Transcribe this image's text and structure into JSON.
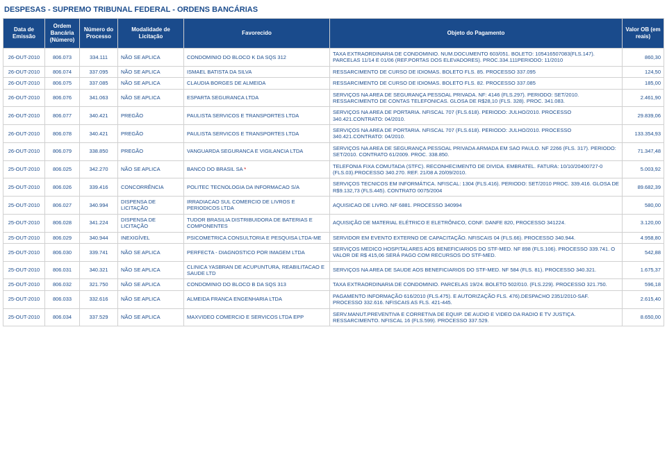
{
  "title": "DESPESAS - SUPREMO TRIBUNAL FEDERAL - ORDENS BANCÁRIAS",
  "headers": {
    "data": "Data de Emissão",
    "ordem": "Ordem Bancária (Número)",
    "processo": "Número do Processo",
    "modalidade": "Modalidade de Licitação",
    "favorecido": "Favorecido",
    "objeto": "Objeto do Pagamento",
    "valor": "Valor OB (em reais)"
  },
  "rows": [
    {
      "data": "26-OUT-2010",
      "ordem": "806.073",
      "proc": "334.111",
      "mod": "NÃO SE APLICA",
      "fav": "CONDOMINIO DO BLOCO K DA SQS 312",
      "obj": "TAXA EXTRAORDINARIA DE CONDOMINIO. NUM.DOCUMENTO 603/051. BOLETO: 105416507083(FLS.147). PARCELAS 11/14 E 01/06 (REF.PORTAS DOS ELEVADORES). PROC.334.111PERIODO: 11/2010",
      "val": "860,30"
    },
    {
      "data": "26-OUT-2010",
      "ordem": "806.074",
      "proc": "337.095",
      "mod": "NÃO SE APLICA",
      "fav": "ISMAEL BATISTA DA SILVA",
      "obj": "RESSARCIMENTO DE CURSO DE IDIOMAS. BOLETO FLS. 85. PROCESSO 337.095",
      "val": "124,50"
    },
    {
      "data": "26-OUT-2010",
      "ordem": "806.075",
      "proc": "337.085",
      "mod": "NÃO SE APLICA",
      "fav": "CLAUDIA BORGES DE ALMEIDA",
      "obj": "RESSARCIMENTO DE CURSO DE IDIOMAS. BOLETO FLS. 82. PROCESSO 337.085",
      "val": "185,00"
    },
    {
      "data": "26-OUT-2010",
      "ordem": "806.076",
      "proc": "341.063",
      "mod": "NÃO SE APLICA",
      "fav": "ESPARTA SEGURANCA LTDA",
      "obj": "SERVIÇOS NA AREA DE SEGURANÇA PESSOAL PRIVADA. NF: 4146 (FLS.297). PERIODO:   SET/2010. RESSARCIMENTO DE CONTAS TELEFONICAS. GLOSA DE R$28,10 (FLS. 328).   PROC. 341.083.",
      "val": "2.461,90"
    },
    {
      "data": "26-OUT-2010",
      "ordem": "806.077",
      "proc": "340.421",
      "mod": "PREGÃO",
      "fav": "PAULISTA SERVICOS E TRANSPORTES LTDA",
      "obj": "SERVIÇOS NA AREA DE PORTARIA. NFISCAL 707 (FLS.618). PERIODO: JULHO/2010.      PROCESSO 340.421.CONTRATO: 04/2010.",
      "val": "29.839,06"
    },
    {
      "data": "26-OUT-2010",
      "ordem": "806.078",
      "proc": "340.421",
      "mod": "PREGÃO",
      "fav": "PAULISTA SERVICOS E TRANSPORTES LTDA",
      "obj": "SERVIÇOS NA AREA DE PORTARIA. NFISCAL 707 (FLS.618). PERIODO: JULHO/2010.      PROCESSO 340.421.CONTRATO: 04/2010.",
      "val": "133.354,93"
    },
    {
      "data": "26-OUT-2010",
      "ordem": "806.079",
      "proc": "338.850",
      "mod": "PREGÃO",
      "fav": "VANGUARDA SEGURANCA E VIGILANCIA LTDA",
      "obj": "SERVIÇOS NA AREA DE SEGURANÇA PESSOAL PRIVADA ARMADA EM SAO PAULO. NF 2266   (FLS. 317). PERIODO: SET/2010. CONTRATO 61/2009. PROC. 338.850.",
      "val": "71.347,48"
    },
    {
      "data": "25-OUT-2010",
      "ordem": "806.025",
      "proc": "342.270",
      "mod": "NÃO SE APLICA",
      "fav": "BANCO DO BRASIL SA",
      "favMark": "*",
      "obj": "TELEFONIA FIXA COMUTADA (STFC). RECONHECIMENTO DE DIVIDA. EMBRATEL.           FATURA: 10/10/20400727-0 (FLS.03).PROCESSO 340.270. REF. 21/08 A 20/09/2010.",
      "val": "5.003,92"
    },
    {
      "data": "25-OUT-2010",
      "ordem": "806.026",
      "proc": "339.416",
      "mod": "CONCORRÊNCIA",
      "fav": "POLITEC TECNOLOGIA DA INFORMACAO S/A",
      "obj": "SERVIÇOS TECNICOS EM INFORMÁTICA. NFISCAL: 1304 (FLS.416). PERIODO: SET/2010 PROC. 339.416. GLOSA DE R$9.132,73 (FLS.445). CONTRATO 0075/2004",
      "val": "89.682,39"
    },
    {
      "data": "25-OUT-2010",
      "ordem": "806.027",
      "proc": "340.994",
      "mod": "DISPENSA DE LICITAÇÃO",
      "fav": "IRRADIACAO SUL COMERCIO DE LIVROS E PERIODICOS LTDA",
      "obj": "AQUISICAO DE LIVRO. NF 6881. PROCESSO 340994",
      "val": "580,00"
    },
    {
      "data": "25-OUT-2010",
      "ordem": "806.028",
      "proc": "341.224",
      "mod": "DISPENSA DE LICITAÇÃO",
      "fav": "TUDOR BRASILIA DISTRIBUIDORA DE BATERIAS E COMPONENTES",
      "obj": "AQUISIÇÃO DE MATERIAL ELÉTRICO E ELETRÔNICO, CONF. DANFE 820, PROCESSO 341224.",
      "val": "3.120,00"
    },
    {
      "data": "25-OUT-2010",
      "ordem": "806.029",
      "proc": "340.944",
      "mod": "INEXIGÍVEL",
      "fav": "PSICOMETRICA CONSULTORIA E PESQUISA LTDA-ME",
      "obj": "SERVIDOR EM EVENTO EXTERNO DE CAPACITAÇÃO. NFISCAIS 04 (FLS.66).             PROCESSO 340.944.",
      "val": "4.958,80"
    },
    {
      "data": "25-OUT-2010",
      "ordem": "806.030",
      "proc": "339.741",
      "mod": "NÃO SE APLICA",
      "fav": "PERFECTA - DIAGNOSTICO POR IMAGEM LTDA",
      "obj": "SERVIÇOS MEDICO HOSPITALARES AOS BENEFICIARIOS DO STF-MED. NF 898 (FLS.106). PROCESSO 339.741. O VALOR DE R$ 415,06 SERÁ PAGO COM RECURSOS DO STF-MED.",
      "val": "542,88"
    },
    {
      "data": "25-OUT-2010",
      "ordem": "806.031",
      "proc": "340.321",
      "mod": "NÃO SE APLICA",
      "fav": "CLINICA YASBRAN DE ACUPUNTURA, REABILITACAO E SAUDE LTD",
      "obj": "SERVIÇOS NA AREA DE SAUDE AOS BENEFICIARIOS DO STF-MED. NF 584 (FLS. 81).    PROCESSO 340.321.",
      "val": "1.675,37"
    },
    {
      "data": "25-OUT-2010",
      "ordem": "806.032",
      "proc": "321.750",
      "mod": "NÃO SE APLICA",
      "fav": "CONDOMINIO DO BLOCO B DA SQS 313",
      "obj": "TAXA EXTRAORDINARIA DE CONDOMINIO. PARCELAS 19/24. BOLETO 502/010.           (FLS.229). PROCESSO 321.750.",
      "val": "596,18"
    },
    {
      "data": "25-OUT-2010",
      "ordem": "806.033",
      "proc": "332.616",
      "mod": "NÃO SE APLICA",
      "fav": "ALMEIDA FRANCA ENGENHARIA LTDA",
      "obj": "PAGAMENTO INFORMAÇÃO 616/2010 (FLS.475). E AUTORIZAÇÃO FLS. 476).DESPACHO 2351/2010-SAF. PROCESSO 332.616. NFISCAIS AS FLS. 421-445.",
      "val": "2.615,40"
    },
    {
      "data": "25-OUT-2010",
      "ordem": "806.034",
      "proc": "337.529",
      "mod": "NÃO SE APLICA",
      "fav": "MAXVIDEO COMERCIO E SERVICOS LTDA EPP",
      "obj": "SERV.MANUT.PREVENTIVA E CORRETIVA DE EQUIP. DE AUDIO E VIDEO DA RADIO E TV   JUSTIÇA. RESSARCIMENTO. NFISCAL 16 (FLS.599). PROCESSO 337.529.",
      "val": "8.650,00"
    }
  ]
}
